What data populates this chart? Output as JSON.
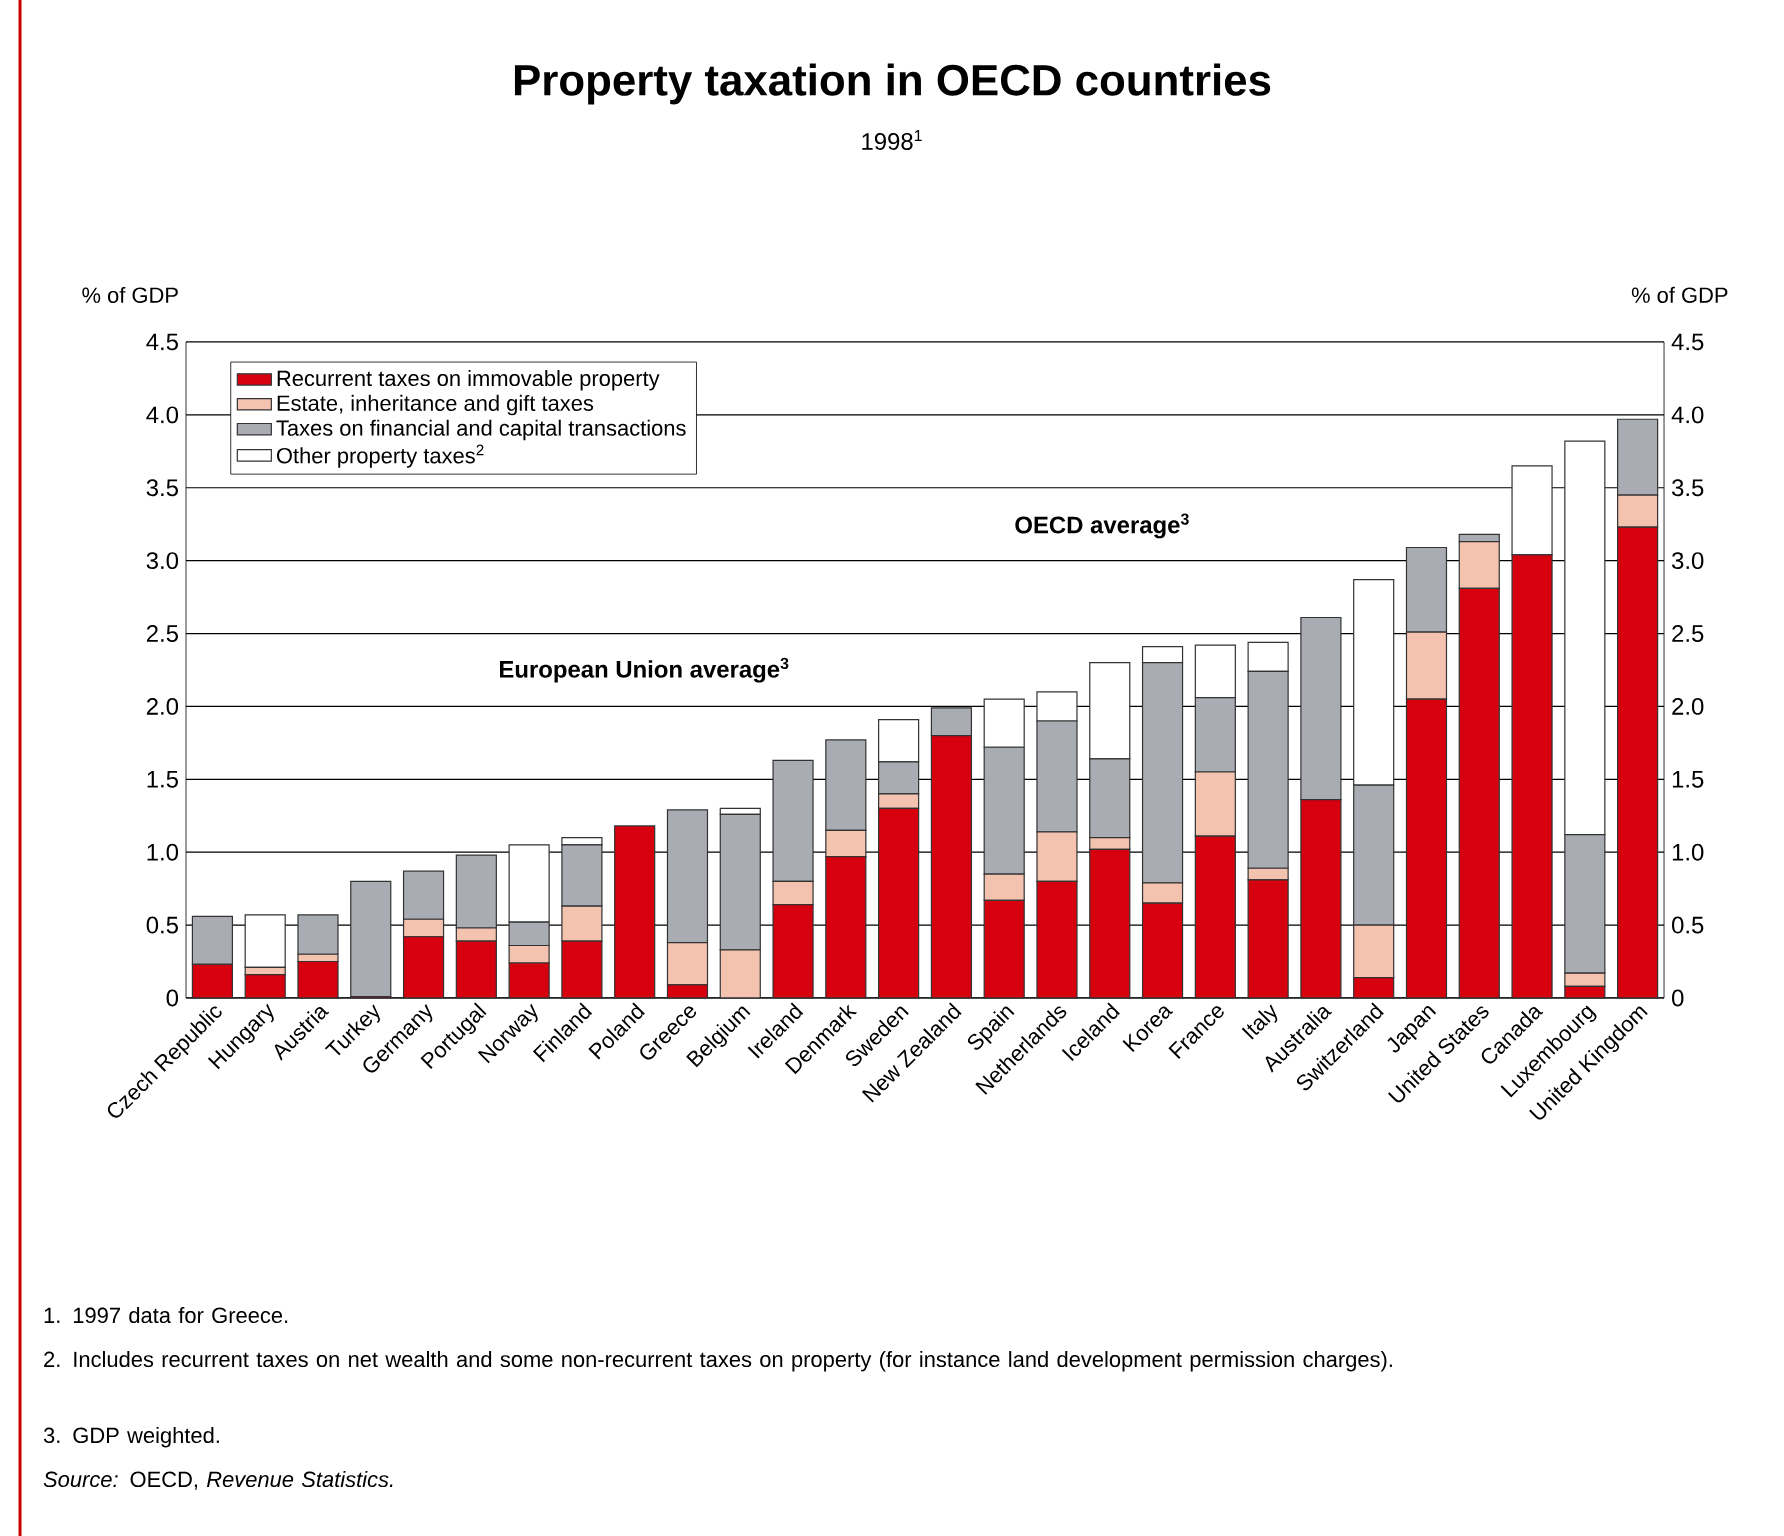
{
  "chart_data": {
    "type": "bar",
    "stacked": true,
    "title": "Property taxation in OECD countries",
    "subtitle": "1998$^{1}$",
    "ylabel": "% of GDP",
    "y2label": "% of GDP",
    "categories": [
      "Czech Republic",
      "Hungary",
      "Austria",
      "Turkey",
      "Germany",
      "Portugal",
      "Norway",
      "Finland",
      "Poland",
      "Greece",
      "Belgium",
      "Ireland",
      "Denmark",
      "Sweden",
      "New Zealand",
      "Spain",
      "Netherlands",
      "Iceland",
      "Korea",
      "France",
      "Italy",
      "Australia",
      "Switzerland",
      "Japan",
      "United States",
      "Canada",
      "Luxembourg",
      "United Kingdom"
    ],
    "series": [
      {
        "name": "Recurrent taxes on immovable property",
        "color": "#d7000f",
        "values": [
          0.23,
          0.16,
          0.25,
          0.01,
          0.42,
          0.39,
          0.24,
          0.39,
          1.18,
          0.09,
          0,
          0.64,
          0.97,
          1.3,
          1.8,
          0.67,
          0.8,
          1.02,
          0.65,
          1.11,
          0.81,
          1.36,
          0.14,
          2.05,
          2.81,
          3.04,
          0.08,
          3.23
        ]
      },
      {
        "name": "Estate, inheritance and gift taxes",
        "color": "#f4c3b0",
        "values": [
          0,
          0.05,
          0.05,
          0,
          0.12,
          0.09,
          0.12,
          0.24,
          0,
          0.29,
          0.33,
          0.16,
          0.18,
          0.1,
          0,
          0.18,
          0.34,
          0.08,
          0.14,
          0.44,
          0.08,
          0,
          0.36,
          0.46,
          0.32,
          0,
          0.09,
          0.22
        ]
      },
      {
        "name": "Taxes on financial and capital transactions",
        "color": "#a9adb3",
        "values": [
          0.33,
          0,
          0.27,
          0.79,
          0.33,
          0.5,
          0.16,
          0.42,
          null,
          0.91,
          0.93,
          0.83,
          0.62,
          0.22,
          0.19,
          0.87,
          0.76,
          0.54,
          1.51,
          0.51,
          1.35,
          1.25,
          0.96,
          0.58,
          0.05,
          0,
          0.95,
          0.52
        ]
      },
      {
        "name": "Other property taxes$^{2}$",
        "color": "#ffffff",
        "values": [
          0,
          0.36,
          0,
          0,
          0,
          0,
          0.53,
          0.05,
          0,
          0,
          0.04,
          0,
          0,
          0.29,
          0,
          0.33,
          0.2,
          0.66,
          0.11,
          0.36,
          0.2,
          0,
          1.41,
          0,
          0,
          0.61,
          2.7,
          0
        ]
      }
    ],
    "ylim": [
      0,
      4.5
    ],
    "yticks": [
      0,
      0.5,
      {
        "value": 1,
        "label": "1.0"
      },
      1.5,
      {
        "value": 2,
        "label": "2.0"
      },
      2.5,
      {
        "value": 3,
        "label": "3.0"
      },
      3.5,
      {
        "value": 4,
        "label": "4.0"
      },
      4.5
    ],
    "y2lim": [
      0,
      4.5
    ],
    "y2ticks": [
      0,
      0.5,
      {
        "value": 1,
        "label": "1.0"
      },
      1.5,
      {
        "value": 2,
        "label": "2.0"
      },
      2.5,
      {
        "value": 3,
        "label": "3.0"
      },
      3.5,
      {
        "value": 4,
        "label": "4.0"
      },
      4.5
    ],
    "grid": "y",
    "legend": "top left",
    "annotations": [
      "European Union average$^{3}$",
      "OECD average$^{3}$",
      "1.  1997 data for Greece.",
      "2.  Includes recurrent taxes on net wealth and some non-recurrent taxes on property (for instance land development permission charges).",
      "3.  GDP weighted.",
      "*Source:*  OECD, *Revenue Statistics.*"
    ]
  }
}
